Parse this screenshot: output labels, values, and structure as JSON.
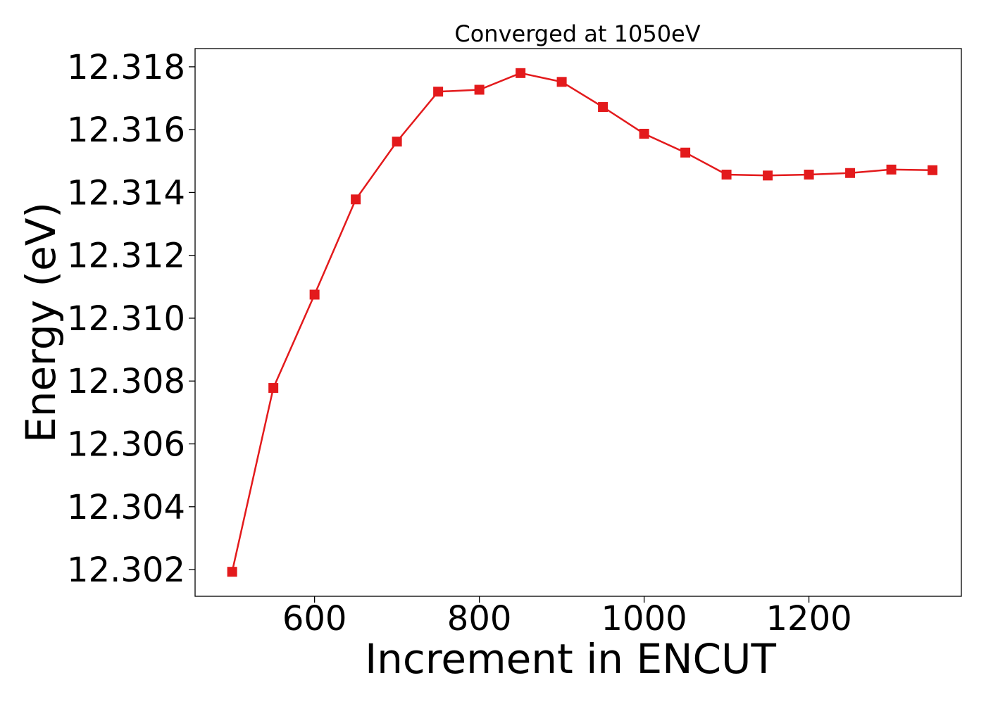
{
  "chart_data": {
    "type": "line",
    "title": "Converged at 1050eV",
    "xlabel": "Increment in ENCUT",
    "ylabel": "Energy (eV)",
    "xlim": [
      455,
      1385
    ],
    "ylim": [
      12.30115,
      12.31858
    ],
    "x_ticks": [
      600,
      800,
      1000,
      1200
    ],
    "y_ticks": [
      12.302,
      12.304,
      12.306,
      12.308,
      12.31,
      12.312,
      12.314,
      12.316,
      12.318
    ],
    "y_tick_labels": [
      "12.302",
      "12.304",
      "12.306",
      "12.308",
      "12.310",
      "12.312",
      "12.314",
      "12.316",
      "12.318"
    ],
    "grid": false,
    "series_color": "#e31a1c",
    "marker": "square",
    "x": [
      500,
      550,
      600,
      650,
      700,
      750,
      800,
      850,
      900,
      950,
      1000,
      1050,
      1100,
      1150,
      1200,
      1250,
      1300,
      1350
    ],
    "series": [
      {
        "values": [
          12.30193,
          12.30778,
          12.31075,
          12.31378,
          12.31562,
          12.31721,
          12.31727,
          12.3178,
          12.31752,
          12.31672,
          12.31587,
          12.31527,
          12.31457,
          12.31454,
          12.31457,
          12.31462,
          12.31473,
          12.31471
        ]
      }
    ]
  }
}
